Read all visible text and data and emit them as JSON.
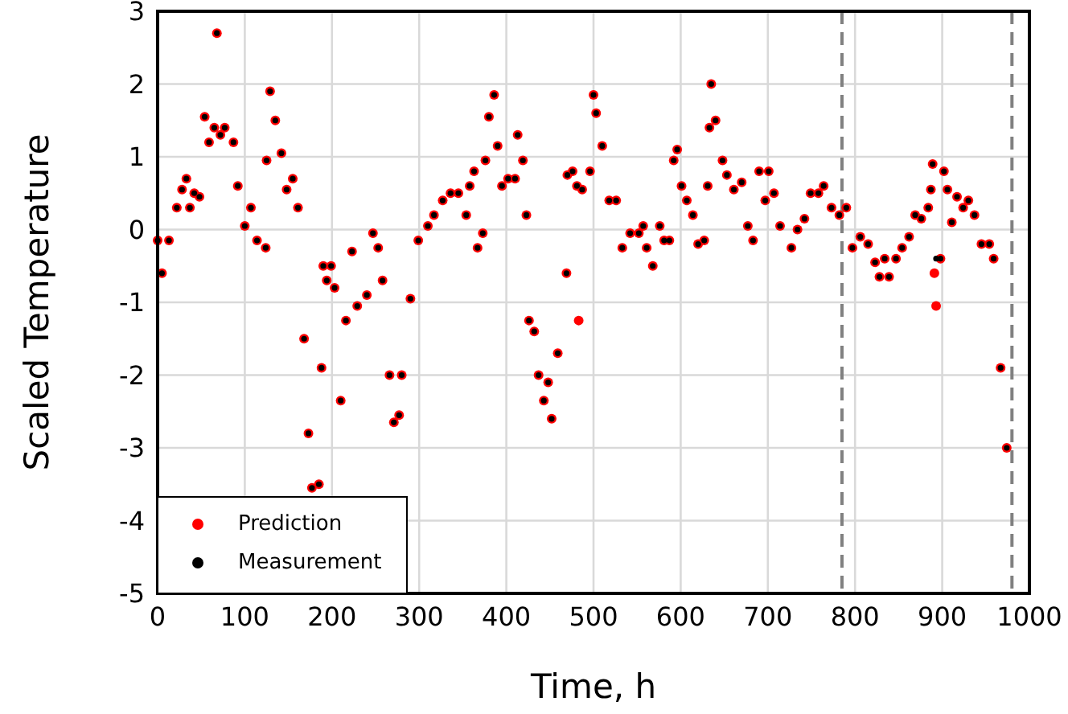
{
  "chart_data": {
    "type": "scatter",
    "xlabel": "Time, h",
    "ylabel": "Scaled Temperature",
    "xlim": [
      0,
      1000
    ],
    "xticks": [
      0,
      100,
      200,
      300,
      400,
      500,
      600,
      700,
      800,
      900,
      1000
    ],
    "ylim": [
      -5,
      3
    ],
    "yticks": [
      -5,
      -4,
      -3,
      -2,
      -1,
      0,
      1,
      2,
      3
    ],
    "grid": true,
    "legend": "bottom left",
    "marker": "circle",
    "ref_lines": [
      {
        "axis": "x",
        "value": 785,
        "color": "#808080",
        "line_style": "dashed"
      },
      {
        "axis": "x",
        "value": 980,
        "color": "#808080",
        "line_style": "dashed"
      }
    ],
    "series": [
      {
        "name": "Prediction",
        "color": "#ff0000",
        "x": [
          0,
          5,
          13,
          22,
          28,
          33,
          37,
          42,
          48,
          54,
          59,
          65,
          68,
          72,
          77,
          87,
          92,
          100,
          107,
          114,
          124,
          125,
          129,
          135,
          142,
          148,
          155,
          161,
          168,
          173,
          177,
          185,
          188,
          190,
          194,
          199,
          203,
          210,
          216,
          223,
          229,
          240,
          247,
          253,
          258,
          266,
          271,
          277,
          280,
          290,
          299,
          310,
          317,
          327,
          336,
          345,
          354,
          358,
          363,
          367,
          373,
          376,
          380,
          386,
          390,
          395,
          402,
          410,
          413,
          419,
          423,
          426,
          432,
          437,
          443,
          448,
          452,
          459,
          469,
          470,
          476,
          481,
          483,
          487,
          496,
          500,
          503,
          510,
          518,
          526,
          533,
          542,
          552,
          557,
          561,
          568,
          576,
          581,
          587,
          592,
          596,
          601,
          607,
          614,
          620,
          627,
          631,
          633,
          635,
          640,
          648,
          653,
          661,
          670,
          677,
          683,
          690,
          697,
          701,
          707,
          714,
          727,
          734,
          742,
          749,
          758,
          764,
          773,
          782,
          790,
          797,
          806,
          815,
          823,
          828,
          834,
          839,
          847,
          854,
          862,
          869,
          876,
          884,
          887,
          889,
          891,
          893,
          898,
          902,
          906,
          911,
          917,
          924,
          930,
          937,
          945,
          954,
          959,
          967,
          974
        ],
        "values": [
          -0.15,
          -0.6,
          -0.15,
          0.3,
          0.55,
          0.7,
          0.3,
          0.5,
          0.45,
          1.55,
          1.2,
          1.4,
          2.7,
          1.3,
          1.4,
          1.2,
          0.6,
          0.05,
          0.3,
          -0.15,
          -0.25,
          0.95,
          1.9,
          1.5,
          1.05,
          0.55,
          0.7,
          0.3,
          -1.5,
          -2.8,
          -3.55,
          -3.5,
          -1.9,
          -0.5,
          -0.7,
          -0.5,
          -0.8,
          -2.35,
          -1.25,
          -0.3,
          -1.05,
          -0.9,
          -0.05,
          -0.25,
          -0.7,
          -2.0,
          -2.65,
          -2.55,
          -2.0,
          -0.95,
          -0.15,
          0.05,
          0.2,
          0.4,
          0.5,
          0.5,
          0.2,
          0.6,
          0.8,
          -0.25,
          -0.05,
          0.95,
          1.55,
          1.85,
          1.15,
          0.6,
          0.7,
          0.7,
          1.3,
          0.95,
          0.2,
          -1.25,
          -1.4,
          -2.0,
          -2.35,
          -2.1,
          -2.6,
          -1.7,
          -0.6,
          0.75,
          0.8,
          0.6,
          -1.25,
          0.55,
          0.8,
          1.85,
          1.6,
          1.15,
          0.4,
          0.4,
          -0.25,
          -0.05,
          -0.05,
          0.05,
          -0.25,
          -0.5,
          0.05,
          -0.15,
          -0.15,
          0.95,
          1.1,
          0.6,
          0.4,
          0.2,
          -0.2,
          -0.15,
          0.6,
          1.4,
          2.0,
          1.5,
          0.95,
          0.75,
          0.55,
          0.65,
          0.05,
          -0.15,
          0.8,
          0.4,
          0.8,
          0.5,
          0.05,
          -0.25,
          0,
          0.15,
          0.5,
          0.5,
          0.6,
          0.3,
          0.2,
          0.3,
          -0.25,
          -0.1,
          -0.2,
          -0.45,
          -0.65,
          -0.4,
          -0.65,
          -0.4,
          -0.25,
          -0.1,
          0.2,
          0.15,
          0.3,
          0.55,
          0.9,
          -0.6,
          -1.05,
          -0.4,
          0.8,
          0.55,
          0.1,
          0.45,
          0.3,
          0.4,
          0.2,
          -0.2,
          -0.2,
          -0.4,
          -1.9,
          -3.0
        ]
      },
      {
        "name": "Measurement",
        "color": "#000000",
        "x": [
          0,
          5,
          13,
          22,
          28,
          33,
          37,
          42,
          48,
          54,
          59,
          65,
          68,
          72,
          77,
          87,
          92,
          100,
          107,
          114,
          124,
          125,
          129,
          135,
          142,
          148,
          155,
          161,
          168,
          173,
          177,
          185,
          188,
          190,
          194,
          199,
          203,
          210,
          216,
          223,
          229,
          240,
          247,
          253,
          258,
          266,
          271,
          277,
          280,
          290,
          299,
          310,
          317,
          327,
          336,
          345,
          354,
          358,
          363,
          367,
          373,
          376,
          380,
          386,
          390,
          395,
          402,
          410,
          413,
          419,
          423,
          426,
          432,
          437,
          443,
          448,
          452,
          459,
          469,
          470,
          476,
          481,
          487,
          496,
          500,
          503,
          510,
          518,
          526,
          533,
          542,
          552,
          557,
          561,
          568,
          576,
          581,
          587,
          592,
          596,
          601,
          607,
          614,
          620,
          627,
          631,
          633,
          635,
          640,
          648,
          653,
          661,
          670,
          677,
          683,
          690,
          697,
          701,
          707,
          714,
          727,
          734,
          742,
          749,
          758,
          764,
          773,
          782,
          790,
          797,
          806,
          815,
          823,
          828,
          834,
          839,
          847,
          854,
          862,
          869,
          876,
          884,
          887,
          889,
          893,
          898,
          902,
          906,
          911,
          917,
          924,
          930,
          937,
          945,
          954,
          959,
          967,
          974
        ],
        "values": [
          -0.15,
          -0.6,
          -0.15,
          0.3,
          0.55,
          0.7,
          0.3,
          0.5,
          0.45,
          1.55,
          1.2,
          1.4,
          2.7,
          1.3,
          1.4,
          1.2,
          0.6,
          0.05,
          0.3,
          -0.15,
          -0.25,
          0.95,
          1.9,
          1.5,
          1.05,
          0.55,
          0.7,
          0.3,
          -1.5,
          -2.8,
          -3.55,
          -3.5,
          -1.9,
          -0.5,
          -0.7,
          -0.5,
          -0.8,
          -2.35,
          -1.25,
          -0.3,
          -1.05,
          -0.9,
          -0.05,
          -0.25,
          -0.7,
          -2.0,
          -2.65,
          -2.55,
          -2.0,
          -0.95,
          -0.15,
          0.05,
          0.2,
          0.4,
          0.5,
          0.5,
          0.2,
          0.6,
          0.8,
          -0.25,
          -0.05,
          0.95,
          1.55,
          1.85,
          1.15,
          0.6,
          0.7,
          0.7,
          1.3,
          0.95,
          0.2,
          -1.25,
          -1.4,
          -2.0,
          -2.35,
          -2.1,
          -2.6,
          -1.7,
          -0.6,
          0.75,
          0.8,
          0.6,
          0.55,
          0.8,
          1.85,
          1.6,
          1.15,
          0.4,
          0.4,
          -0.25,
          -0.05,
          -0.05,
          0.05,
          -0.25,
          -0.5,
          0.05,
          -0.15,
          -0.15,
          0.95,
          1.1,
          0.6,
          0.4,
          0.2,
          -0.2,
          -0.15,
          0.6,
          1.4,
          2.0,
          1.5,
          0.95,
          0.75,
          0.55,
          0.65,
          0.05,
          -0.15,
          0.8,
          0.4,
          0.8,
          0.5,
          0.05,
          -0.25,
          0,
          0.15,
          0.5,
          0.5,
          0.6,
          0.3,
          0.2,
          0.3,
          -0.25,
          -0.1,
          -0.2,
          -0.45,
          -0.65,
          -0.4,
          -0.65,
          -0.4,
          -0.25,
          -0.1,
          0.2,
          0.15,
          0.3,
          0.55,
          0.9,
          -0.4,
          -0.4,
          0.8,
          0.55,
          0.1,
          0.45,
          0.3,
          0.4,
          0.2,
          -0.2,
          -0.2,
          -0.4,
          -1.9,
          -3.0
        ]
      }
    ]
  }
}
